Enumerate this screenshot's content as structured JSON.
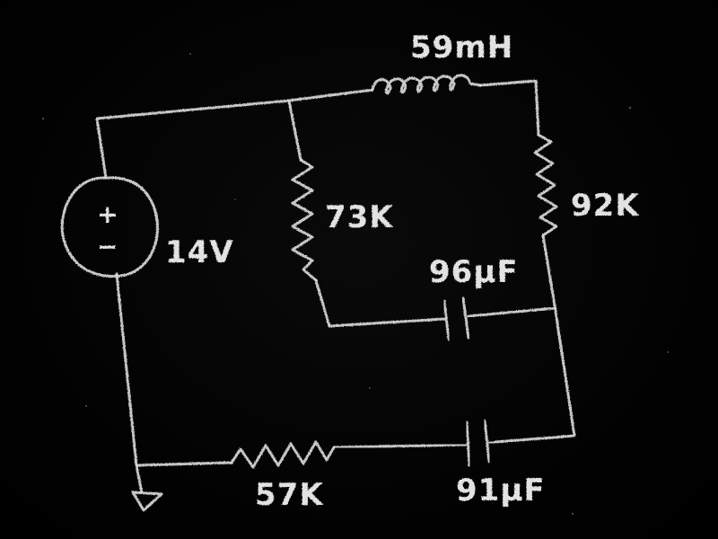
{
  "diagram": {
    "background_color": "#000000",
    "chalk_color": "#e2e2e2",
    "source": {
      "plus": "+",
      "minus": "−",
      "label": "14V"
    },
    "components": {
      "inductor_top": "59mH",
      "resistor_left_inner": "73K",
      "resistor_right": "92K",
      "capacitor_middle": "96μF",
      "resistor_bottom": "57K",
      "capacitor_bottom": "91μF"
    }
  }
}
